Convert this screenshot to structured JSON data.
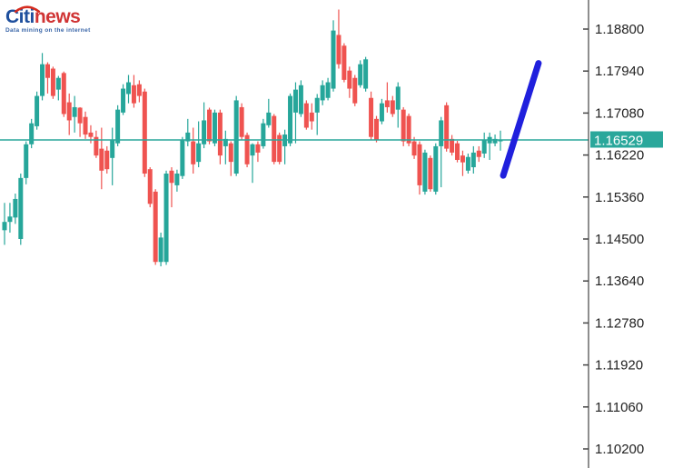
{
  "logo": {
    "brand_primary": "Citi",
    "brand_secondary": "news",
    "tagline": "Data mining on the internet",
    "primary_color": "#1e4f9d",
    "secondary_color": "#d03434",
    "arc_color": "#d52b1e",
    "tagline_color": "#3a66a8"
  },
  "chart_data": {
    "type": "candlestick",
    "title": "",
    "instrument_hint": "forex price chart",
    "current_price": 1.16529,
    "current_price_label": "1.16529",
    "bull_color": "#26a69a",
    "bear_color": "#ef5350",
    "current_price_line_color": "#2aa79b",
    "tag_bg_color": "#2aa79b",
    "tag_text_color": "#ffffff",
    "axis_color": "#444444",
    "label_color": "#222222",
    "axis": {
      "position": "right",
      "price_max": 1.188,
      "price_min": 1.102,
      "tick_step": 0.0086,
      "top_tick_value": 1.188,
      "tick_labels": [
        "1.18800",
        "1.17940",
        "1.17080",
        "1.16220",
        "1.15360",
        "1.14500",
        "1.13640",
        "1.12780",
        "1.11920",
        "1.11060",
        "1.10200"
      ]
    },
    "trend_line": {
      "description": "thick blue upward trend arrow at right side",
      "color": "#2020dd",
      "x1_frac": 0.855,
      "price1": 1.158,
      "x2_frac": 0.915,
      "price2": 1.181
    },
    "candles_ohlc_order": [
      "open",
      "high",
      "low",
      "close"
    ],
    "candles": [
      [
        1.1468,
        1.1524,
        1.1438,
        1.1485
      ],
      [
        1.1485,
        1.1524,
        1.1463,
        1.1496
      ],
      [
        1.1494,
        1.1543,
        1.1481,
        1.1532
      ],
      [
        1.145,
        1.1584,
        1.1438,
        1.1575
      ],
      [
        1.1575,
        1.165,
        1.1562,
        1.1644
      ],
      [
        1.1644,
        1.1696,
        1.1636,
        1.1687
      ],
      [
        1.1681,
        1.1752,
        1.1674,
        1.1743
      ],
      [
        1.1743,
        1.1831,
        1.1734,
        1.1808
      ],
      [
        1.1808,
        1.1812,
        1.1748,
        1.178
      ],
      [
        1.1799,
        1.1803,
        1.1737,
        1.1743
      ],
      [
        1.1756,
        1.1784,
        1.1734,
        1.178
      ],
      [
        1.179,
        1.1793,
        1.17,
        1.1706
      ],
      [
        1.173,
        1.1748,
        1.1663,
        1.1693
      ],
      [
        1.17,
        1.1743,
        1.1668,
        1.172
      ],
      [
        1.1719,
        1.172,
        1.1659,
        1.1687
      ],
      [
        1.17,
        1.1711,
        1.1655,
        1.1664
      ],
      [
        1.1668,
        1.1683,
        1.1646,
        1.1659
      ],
      [
        1.1659,
        1.1672,
        1.1616,
        1.1621
      ],
      [
        1.1635,
        1.1678,
        1.1552,
        1.159
      ],
      [
        1.1631,
        1.164,
        1.1584,
        1.1593
      ],
      [
        1.1616,
        1.1678,
        1.156,
        1.1653
      ],
      [
        1.1646,
        1.1724,
        1.164,
        1.1715
      ],
      [
        1.1709,
        1.1767,
        1.1704,
        1.1758
      ],
      [
        1.1747,
        1.1786,
        1.1728,
        1.1771
      ],
      [
        1.1765,
        1.1786,
        1.1719,
        1.1728
      ],
      [
        1.1767,
        1.1775,
        1.173,
        1.1743
      ],
      [
        1.1752,
        1.1758,
        1.1577,
        1.1584
      ],
      [
        1.1593,
        1.1597,
        1.1515,
        1.1522
      ],
      [
        1.1547,
        1.1552,
        1.1397,
        1.1403
      ],
      [
        1.1403,
        1.1463,
        1.1394,
        1.1453
      ],
      [
        1.1403,
        1.159,
        1.1397,
        1.1584
      ],
      [
        1.159,
        1.1597,
        1.1515,
        1.1565
      ],
      [
        1.156,
        1.1592,
        1.1547,
        1.1584
      ],
      [
        1.1579,
        1.1659,
        1.1573,
        1.1653
      ],
      [
        1.165,
        1.1696,
        1.164,
        1.1668
      ],
      [
        1.165,
        1.1678,
        1.1584,
        1.1603
      ],
      [
        1.1608,
        1.1691,
        1.1597,
        1.1646
      ],
      [
        1.1644,
        1.173,
        1.1636,
        1.1693
      ],
      [
        1.1715,
        1.1719,
        1.1644,
        1.165
      ],
      [
        1.1646,
        1.1715,
        1.164,
        1.1709
      ],
      [
        1.1709,
        1.1715,
        1.1603,
        1.1621
      ],
      [
        1.164,
        1.1672,
        1.1603,
        1.1655
      ],
      [
        1.1646,
        1.165,
        1.1579,
        1.1608
      ],
      [
        1.1584,
        1.1743,
        1.1579,
        1.1734
      ],
      [
        1.172,
        1.1728,
        1.1653,
        1.1659
      ],
      [
        1.1663,
        1.1668,
        1.1597,
        1.1603
      ],
      [
        1.1621,
        1.1646,
        1.1565,
        1.1644
      ],
      [
        1.1644,
        1.165,
        1.1608,
        1.1627
      ],
      [
        1.164,
        1.1696,
        1.1635,
        1.1687
      ],
      [
        1.1683,
        1.1737,
        1.1678,
        1.1709
      ],
      [
        1.1702,
        1.1706,
        1.1603,
        1.1608
      ],
      [
        1.1663,
        1.1668,
        1.1603,
        1.1608
      ],
      [
        1.164,
        1.1674,
        1.1603,
        1.1664
      ],
      [
        1.1646,
        1.1748,
        1.164,
        1.1743
      ],
      [
        1.1709,
        1.1771,
        1.1646,
        1.1756
      ],
      [
        1.1706,
        1.1775,
        1.17,
        1.1765
      ],
      [
        1.1728,
        1.1734,
        1.1674,
        1.1678
      ],
      [
        1.1709,
        1.1728,
        1.1674,
        1.1691
      ],
      [
        1.1709,
        1.1747,
        1.1663,
        1.1739
      ],
      [
        1.1734,
        1.1775,
        1.1724,
        1.1765
      ],
      [
        1.1739,
        1.178,
        1.1734,
        1.1771
      ],
      [
        1.1758,
        1.1898,
        1.1752,
        1.1877
      ],
      [
        1.1868,
        1.192,
        1.1799,
        1.1808
      ],
      [
        1.1846,
        1.1851,
        1.1771,
        1.1776
      ],
      [
        1.1795,
        1.1803,
        1.1739,
        1.1758
      ],
      [
        1.178,
        1.1786,
        1.1722,
        1.1728
      ],
      [
        1.1765,
        1.1816,
        1.176,
        1.1808
      ],
      [
        1.1758,
        1.1823,
        1.1752,
        1.1818
      ],
      [
        1.1739,
        1.1752,
        1.1653,
        1.1659
      ],
      [
        1.1696,
        1.1702,
        1.1648,
        1.1653
      ],
      [
        1.1691,
        1.1737,
        1.1685,
        1.1728
      ],
      [
        1.1734,
        1.1771,
        1.1709,
        1.172
      ],
      [
        1.1734,
        1.1743,
        1.17,
        1.1706
      ],
      [
        1.1715,
        1.1771,
        1.1678,
        1.1762
      ],
      [
        1.1715,
        1.172,
        1.164,
        1.165
      ],
      [
        1.1702,
        1.1707,
        1.164,
        1.1646
      ],
      [
        1.165,
        1.1659,
        1.1614,
        1.1621
      ],
      [
        1.1644,
        1.165,
        1.1541,
        1.156
      ],
      [
        1.1547,
        1.1633,
        1.1541,
        1.1627
      ],
      [
        1.1616,
        1.1621,
        1.1547,
        1.1552
      ],
      [
        1.1547,
        1.1646,
        1.1541,
        1.164
      ],
      [
        1.164,
        1.17,
        1.1556,
        1.1693
      ],
      [
        1.1724,
        1.173,
        1.1629,
        1.1635
      ],
      [
        1.1655,
        1.1663,
        1.1621,
        1.1627
      ],
      [
        1.1646,
        1.1651,
        1.1607,
        1.1612
      ],
      [
        1.1621,
        1.1631,
        1.1579,
        1.1607
      ],
      [
        1.159,
        1.1625,
        1.1584,
        1.1618
      ],
      [
        1.1597,
        1.164,
        1.1584,
        1.1627
      ],
      [
        1.1631,
        1.164,
        1.1608,
        1.1618
      ],
      [
        1.1625,
        1.1668,
        1.1616,
        1.1653
      ],
      [
        1.1646,
        1.1668,
        1.1612,
        1.1659
      ],
      [
        1.1646,
        1.1664,
        1.164,
        1.1655
      ],
      [
        1.165,
        1.1672,
        1.1631,
        1.1653
      ]
    ]
  }
}
